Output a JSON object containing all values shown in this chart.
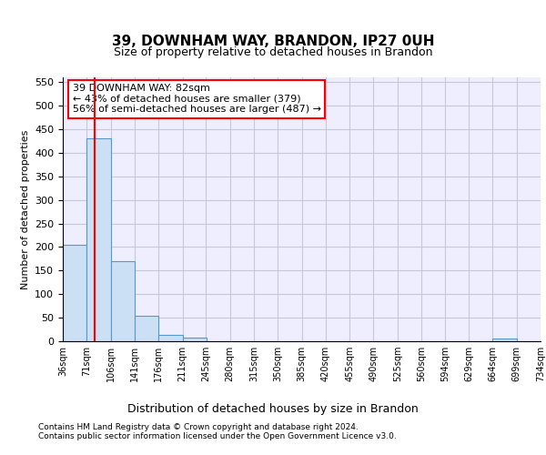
{
  "title1": "39, DOWNHAM WAY, BRANDON, IP27 0UH",
  "title2": "Size of property relative to detached houses in Brandon",
  "xlabel": "Distribution of detached houses by size in Brandon",
  "ylabel": "Number of detached properties",
  "bins": [
    "36sqm",
    "71sqm",
    "106sqm",
    "141sqm",
    "176sqm",
    "211sqm",
    "245sqm",
    "280sqm",
    "315sqm",
    "350sqm",
    "385sqm",
    "420sqm",
    "455sqm",
    "490sqm",
    "525sqm",
    "560sqm",
    "594sqm",
    "629sqm",
    "664sqm",
    "699sqm",
    "734sqm"
  ],
  "bin_edges": [
    36,
    71,
    106,
    141,
    176,
    211,
    245,
    280,
    315,
    350,
    385,
    420,
    455,
    490,
    525,
    560,
    594,
    629,
    664,
    699,
    734
  ],
  "bar_heights": [
    205,
    430,
    170,
    55,
    13,
    8,
    0,
    0,
    0,
    0,
    0,
    0,
    0,
    0,
    0,
    0,
    0,
    0,
    5,
    0,
    0
  ],
  "bar_color": "#cce0f5",
  "bar_edge_color": "#5599cc",
  "grid_color": "#c8c8d8",
  "background_color": "#eeeeff",
  "red_line_x": 82,
  "annotation_text": "39 DOWNHAM WAY: 82sqm\n← 43% of detached houses are smaller (379)\n56% of semi-detached houses are larger (487) →",
  "ylim": [
    0,
    560
  ],
  "yticks": [
    0,
    50,
    100,
    150,
    200,
    250,
    300,
    350,
    400,
    450,
    500,
    550
  ],
  "footer1": "Contains HM Land Registry data © Crown copyright and database right 2024.",
  "footer2": "Contains public sector information licensed under the Open Government Licence v3.0."
}
